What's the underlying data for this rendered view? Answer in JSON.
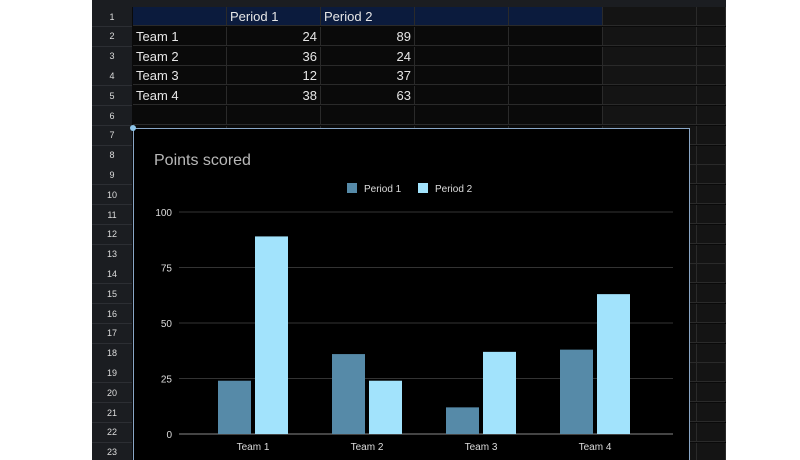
{
  "sheet": {
    "row_numbers": [
      "1",
      "2",
      "3",
      "4",
      "5",
      "6",
      "7",
      "8",
      "9",
      "10",
      "11",
      "12",
      "13",
      "14",
      "15",
      "16",
      "17",
      "18",
      "19",
      "20",
      "21",
      "22",
      "23"
    ],
    "header": [
      "",
      "Period 1",
      "Period 2"
    ],
    "rows": [
      [
        "Team 1",
        "24",
        "89"
      ],
      [
        "Team 2",
        "36",
        "24"
      ],
      [
        "Team 3",
        "12",
        "37"
      ],
      [
        "Team 4",
        "38",
        "63"
      ]
    ]
  },
  "chart_data": {
    "type": "bar",
    "title": "Points scored",
    "categories": [
      "Team 1",
      "Team 2",
      "Team 3",
      "Team 4"
    ],
    "series": [
      {
        "name": "Period 1",
        "values": [
          24,
          36,
          12,
          38
        ],
        "color": "#568aa8"
      },
      {
        "name": "Period 2",
        "values": [
          89,
          24,
          37,
          63
        ],
        "color": "#a2e3fc"
      }
    ],
    "ylim": [
      0,
      100
    ],
    "yticks": [
      "0",
      "25",
      "50",
      "75",
      "100"
    ],
    "grid": true,
    "legend": "top"
  }
}
